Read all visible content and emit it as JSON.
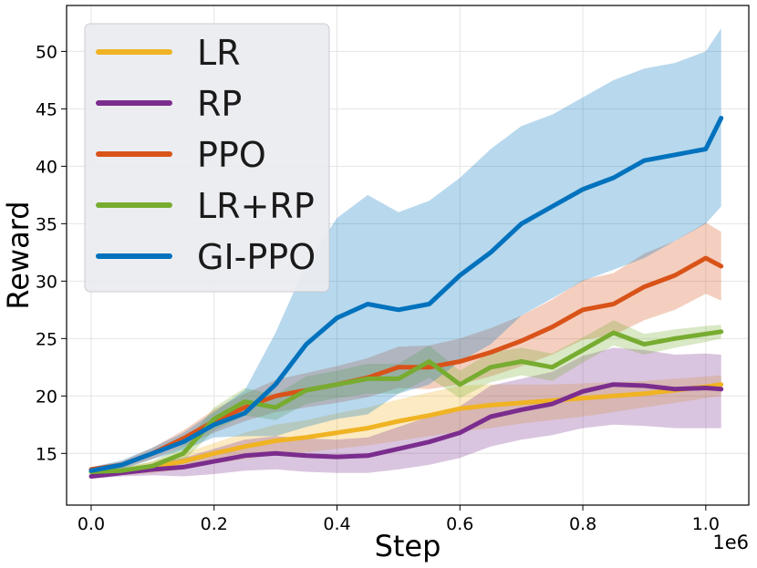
{
  "chart_data": {
    "type": "line",
    "title": "",
    "xlabel": "Step",
    "ylabel": "Reward",
    "x_offset_label": "1e6",
    "xlim": [
      -0.04,
      1.07
    ],
    "ylim": [
      10.5,
      54
    ],
    "xticks": [
      0.0,
      0.2,
      0.4,
      0.6,
      0.8,
      1.0
    ],
    "xtick_labels": [
      "0.0",
      "0.2",
      "0.4",
      "0.6",
      "0.8",
      "1.0"
    ],
    "yticks": [
      15,
      20,
      25,
      30,
      35,
      40,
      45,
      50
    ],
    "ytick_labels": [
      "15",
      "20",
      "25",
      "30",
      "35",
      "40",
      "45",
      "50"
    ],
    "grid": true,
    "legend_position": "top-left",
    "x": [
      0.0,
      0.05,
      0.1,
      0.15,
      0.2,
      0.25,
      0.3,
      0.35,
      0.4,
      0.45,
      0.5,
      0.55,
      0.6,
      0.65,
      0.7,
      0.75,
      0.8,
      0.85,
      0.9,
      0.95,
      1.0,
      1.025
    ],
    "series": [
      {
        "name": "LR",
        "color": "#f0b323",
        "mean": [
          13.5,
          13.4,
          13.8,
          14.3,
          15.0,
          15.6,
          16.1,
          16.4,
          16.8,
          17.2,
          17.8,
          18.3,
          18.9,
          19.2,
          19.4,
          19.6,
          19.8,
          20.0,
          20.2,
          20.5,
          20.8,
          21.0
        ],
        "lower": [
          13.2,
          13.1,
          13.3,
          13.6,
          14.1,
          14.5,
          14.9,
          15.1,
          15.4,
          15.7,
          16.1,
          16.5,
          16.9,
          17.2,
          17.6,
          17.9,
          18.2,
          18.6,
          19.0,
          19.4,
          19.8,
          20.0
        ],
        "upper": [
          13.8,
          13.7,
          14.3,
          15.0,
          15.9,
          16.8,
          17.5,
          17.9,
          18.5,
          19.0,
          19.7,
          20.3,
          20.9,
          21.0,
          21.0,
          21.0,
          21.1,
          21.2,
          21.3,
          21.5,
          21.7,
          21.8
        ]
      },
      {
        "name": "RP",
        "color": "#7b2d8e",
        "mean": [
          13.0,
          13.3,
          13.6,
          13.8,
          14.3,
          14.8,
          15.0,
          14.8,
          14.7,
          14.8,
          15.4,
          16.0,
          16.8,
          18.2,
          18.8,
          19.3,
          20.4,
          21.0,
          20.9,
          20.6,
          20.7,
          20.6
        ],
        "lower": [
          12.8,
          13.0,
          13.1,
          13.0,
          13.2,
          13.5,
          13.6,
          13.4,
          13.3,
          13.3,
          13.6,
          14.0,
          14.6,
          15.6,
          16.2,
          16.6,
          17.2,
          17.5,
          17.4,
          17.2,
          17.2,
          17.2
        ],
        "upper": [
          13.3,
          13.6,
          14.1,
          14.6,
          15.4,
          16.2,
          16.5,
          16.3,
          16.2,
          16.4,
          17.3,
          18.2,
          19.1,
          20.9,
          21.5,
          22.1,
          23.5,
          24.2,
          24.0,
          23.6,
          23.7,
          23.6
        ]
      },
      {
        "name": "PPO",
        "color": "#d95319",
        "mean": [
          13.6,
          14.0,
          15.0,
          16.3,
          17.8,
          19.0,
          20.0,
          20.5,
          21.0,
          21.6,
          22.5,
          22.5,
          23.0,
          23.8,
          24.8,
          26.0,
          27.5,
          28.0,
          29.5,
          30.5,
          32.0,
          31.3
        ],
        "lower": [
          13.4,
          13.7,
          14.5,
          15.6,
          16.8,
          17.8,
          18.6,
          19.0,
          19.4,
          19.9,
          20.7,
          20.6,
          21.0,
          21.7,
          22.6,
          23.6,
          24.9,
          25.3,
          26.6,
          27.5,
          28.9,
          28.3
        ],
        "upper": [
          13.8,
          14.3,
          15.5,
          17.0,
          18.8,
          20.2,
          21.4,
          22.0,
          22.6,
          23.3,
          24.3,
          24.4,
          25.0,
          25.9,
          27.0,
          28.4,
          30.1,
          30.7,
          32.4,
          33.5,
          35.1,
          34.3
        ]
      },
      {
        "name": "LR+RP",
        "color": "#77ac30",
        "mean": [
          13.4,
          13.5,
          13.9,
          15.0,
          18.0,
          19.5,
          19.0,
          20.5,
          21.0,
          21.5,
          21.5,
          23.0,
          21.0,
          22.5,
          23.0,
          22.5,
          24.0,
          25.5,
          24.5,
          25.0,
          25.4,
          25.6
        ],
        "lower": [
          13.1,
          13.2,
          13.5,
          14.3,
          17.0,
          18.3,
          17.9,
          19.3,
          19.8,
          20.2,
          20.2,
          21.6,
          19.8,
          21.2,
          21.8,
          21.3,
          22.9,
          24.4,
          23.6,
          24.2,
          24.7,
          25.0
        ],
        "upper": [
          13.8,
          13.8,
          14.3,
          15.7,
          19.0,
          20.7,
          20.1,
          21.7,
          22.2,
          22.8,
          22.8,
          24.4,
          22.2,
          23.8,
          24.2,
          23.7,
          25.1,
          26.6,
          25.4,
          25.8,
          26.1,
          26.2
        ]
      },
      {
        "name": "GI-PPO",
        "color": "#0072bd",
        "mean": [
          13.5,
          14.0,
          15.0,
          16.0,
          17.5,
          18.5,
          21.0,
          24.5,
          26.8,
          28.0,
          27.5,
          28.0,
          30.5,
          32.5,
          35.0,
          36.5,
          38.0,
          39.0,
          40.5,
          41.0,
          41.5,
          44.2
        ],
        "lower": [
          13.2,
          13.6,
          14.5,
          15.3,
          16.4,
          16.5,
          16.5,
          17.3,
          18.0,
          18.4,
          20.2,
          21.0,
          23.0,
          24.5,
          27.0,
          28.5,
          30.0,
          31.0,
          32.0,
          33.5,
          35.0,
          36.5
        ],
        "upper": [
          13.8,
          14.4,
          15.5,
          16.8,
          18.6,
          20.5,
          25.5,
          31.5,
          35.5,
          37.5,
          36.0,
          37.0,
          39.0,
          41.5,
          43.5,
          44.5,
          46.0,
          47.5,
          48.5,
          49.0,
          50.0,
          52.0
        ]
      }
    ]
  }
}
